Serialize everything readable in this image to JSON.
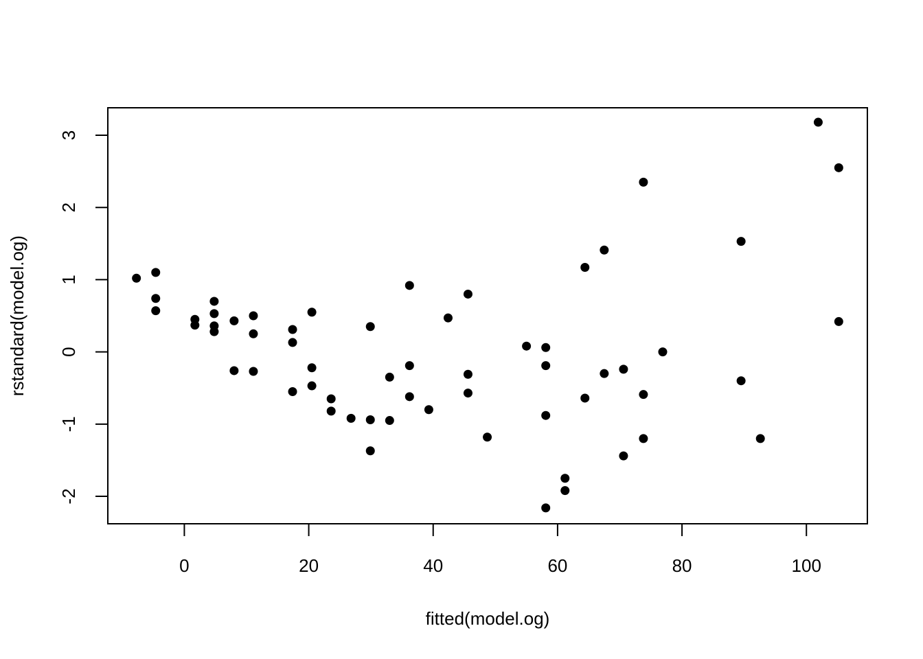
{
  "chart_data": {
    "type": "scatter",
    "xlabel": "fitted(model.og)",
    "ylabel": "rstandard(model.og)",
    "xlim": [
      -12.3,
      109.8
    ],
    "ylim": [
      -2.38,
      3.38
    ],
    "x_ticks": [
      0,
      20,
      40,
      60,
      80,
      100
    ],
    "y_ticks": [
      -2,
      -1,
      0,
      1,
      2,
      3
    ],
    "grid": false,
    "marker_color": "#000000",
    "points": [
      {
        "x": -7.7,
        "y": 1.02
      },
      {
        "x": -4.6,
        "y": 1.1
      },
      {
        "x": -4.6,
        "y": 0.74
      },
      {
        "x": -4.6,
        "y": 0.57
      },
      {
        "x": 1.7,
        "y": 0.45
      },
      {
        "x": 1.7,
        "y": 0.37
      },
      {
        "x": 4.8,
        "y": 0.7
      },
      {
        "x": 4.8,
        "y": 0.53
      },
      {
        "x": 4.8,
        "y": 0.36
      },
      {
        "x": 4.8,
        "y": 0.28
      },
      {
        "x": 8.0,
        "y": 0.43
      },
      {
        "x": 8.0,
        "y": -0.26
      },
      {
        "x": 11.1,
        "y": 0.5
      },
      {
        "x": 11.1,
        "y": 0.25
      },
      {
        "x": 11.1,
        "y": -0.27
      },
      {
        "x": 17.4,
        "y": 0.31
      },
      {
        "x": 17.4,
        "y": 0.13
      },
      {
        "x": 17.4,
        "y": -0.55
      },
      {
        "x": 20.5,
        "y": 0.55
      },
      {
        "x": 20.5,
        "y": -0.22
      },
      {
        "x": 20.5,
        "y": -0.47
      },
      {
        "x": 23.6,
        "y": -0.65
      },
      {
        "x": 23.6,
        "y": -0.82
      },
      {
        "x": 26.8,
        "y": -0.92
      },
      {
        "x": 29.9,
        "y": 0.35
      },
      {
        "x": 29.9,
        "y": -0.94
      },
      {
        "x": 29.9,
        "y": -1.37
      },
      {
        "x": 33.0,
        "y": -0.35
      },
      {
        "x": 33.0,
        "y": -0.95
      },
      {
        "x": 36.2,
        "y": 0.92
      },
      {
        "x": 36.2,
        "y": -0.19
      },
      {
        "x": 36.2,
        "y": -0.62
      },
      {
        "x": 39.3,
        "y": -0.8
      },
      {
        "x": 42.4,
        "y": 0.47
      },
      {
        "x": 45.6,
        "y": 0.8
      },
      {
        "x": 45.6,
        "y": -0.31
      },
      {
        "x": 45.6,
        "y": -0.57
      },
      {
        "x": 48.7,
        "y": -1.18
      },
      {
        "x": 55.0,
        "y": 0.08
      },
      {
        "x": 58.1,
        "y": 0.06
      },
      {
        "x": 58.1,
        "y": -0.19
      },
      {
        "x": 58.1,
        "y": -0.88
      },
      {
        "x": 58.1,
        "y": -2.16
      },
      {
        "x": 61.2,
        "y": -1.75
      },
      {
        "x": 61.2,
        "y": -1.92
      },
      {
        "x": 64.4,
        "y": 1.17
      },
      {
        "x": 64.4,
        "y": -0.64
      },
      {
        "x": 67.5,
        "y": 1.41
      },
      {
        "x": 67.5,
        "y": -0.3
      },
      {
        "x": 70.6,
        "y": -0.24
      },
      {
        "x": 70.6,
        "y": -1.44
      },
      {
        "x": 73.8,
        "y": 2.35
      },
      {
        "x": 73.8,
        "y": -0.59
      },
      {
        "x": 73.8,
        "y": -1.2
      },
      {
        "x": 76.9,
        "y": 0.0
      },
      {
        "x": 89.5,
        "y": 1.53
      },
      {
        "x": 89.5,
        "y": -0.4
      },
      {
        "x": 92.6,
        "y": -1.2
      },
      {
        "x": 101.9,
        "y": 3.18
      },
      {
        "x": 105.2,
        "y": 2.55
      },
      {
        "x": 105.2,
        "y": 0.42
      }
    ]
  }
}
